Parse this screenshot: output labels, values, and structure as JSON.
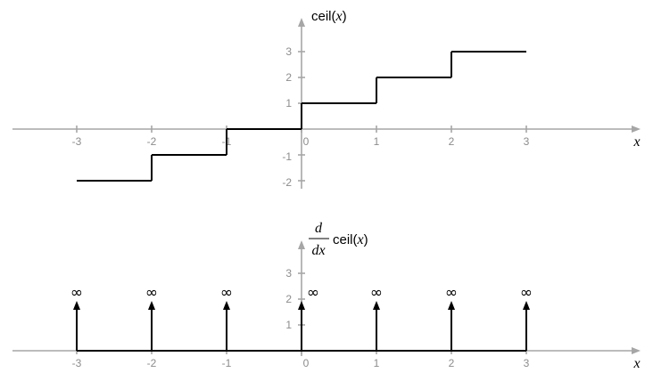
{
  "colors": {
    "axis": "#a6a6a6",
    "tick_label": "#8c8c8c",
    "curve": "#000000"
  },
  "chart_data": [
    {
      "type": "line",
      "xlabel": "x",
      "ylabel_parts": [
        "ceil(",
        "x",
        ")"
      ],
      "xlim": [
        -3.5,
        4.4
      ],
      "ylim": [
        -2.3,
        4.3
      ],
      "x_ticks": [
        -3,
        -2,
        -1,
        0,
        1,
        2,
        3
      ],
      "x_tick_labels": [
        "-3",
        "-2",
        "-1",
        "0",
        "1",
        "2",
        "3"
      ],
      "y_ticks": [
        -2,
        -1,
        1,
        2,
        3
      ],
      "y_tick_labels": [
        "-2",
        "-1",
        "1",
        "2",
        "3"
      ],
      "segments": [
        {
          "x": [
            -3,
            -2
          ],
          "y": -2
        },
        {
          "x": [
            -2,
            -1
          ],
          "y": -1
        },
        {
          "x": [
            -1,
            0
          ],
          "y": 0
        },
        {
          "x": [
            0,
            1
          ],
          "y": 1
        },
        {
          "x": [
            1,
            2
          ],
          "y": 2
        },
        {
          "x": [
            2,
            3
          ],
          "y": 3
        }
      ],
      "jumps": [
        {
          "x": -2,
          "from": -2,
          "to": -1
        },
        {
          "x": -1,
          "from": -1,
          "to": 0
        },
        {
          "x": 0,
          "from": 0,
          "to": 1
        },
        {
          "x": 1,
          "from": 1,
          "to": 2
        },
        {
          "x": 2,
          "from": 2,
          "to": 3
        }
      ]
    },
    {
      "type": "line",
      "xlabel": "x",
      "ylabel_fraction": {
        "numerator": "d",
        "denominator": "dx"
      },
      "ylabel_func": "ceil(",
      "ylabel_var": "x",
      "ylabel_close": ")",
      "xlim": [
        -3.5,
        4.4
      ],
      "ylim": [
        -0.3,
        4.3
      ],
      "x_ticks": [
        -3,
        -2,
        -1,
        0,
        1,
        2,
        3
      ],
      "x_tick_labels": [
        "-3",
        "-2",
        "-1",
        "0",
        "1",
        "2",
        "3"
      ],
      "y_ticks": [
        1,
        2,
        3
      ],
      "y_tick_labels": [
        "1",
        "2",
        "3"
      ],
      "baseline": {
        "x": [
          -3,
          3
        ],
        "y": 0
      },
      "impulses": {
        "x": [
          -3,
          -2,
          -1,
          0,
          1,
          2,
          3
        ],
        "labels": [
          "∞",
          "∞",
          "∞",
          "∞",
          "∞",
          "∞",
          "∞"
        ]
      }
    }
  ]
}
